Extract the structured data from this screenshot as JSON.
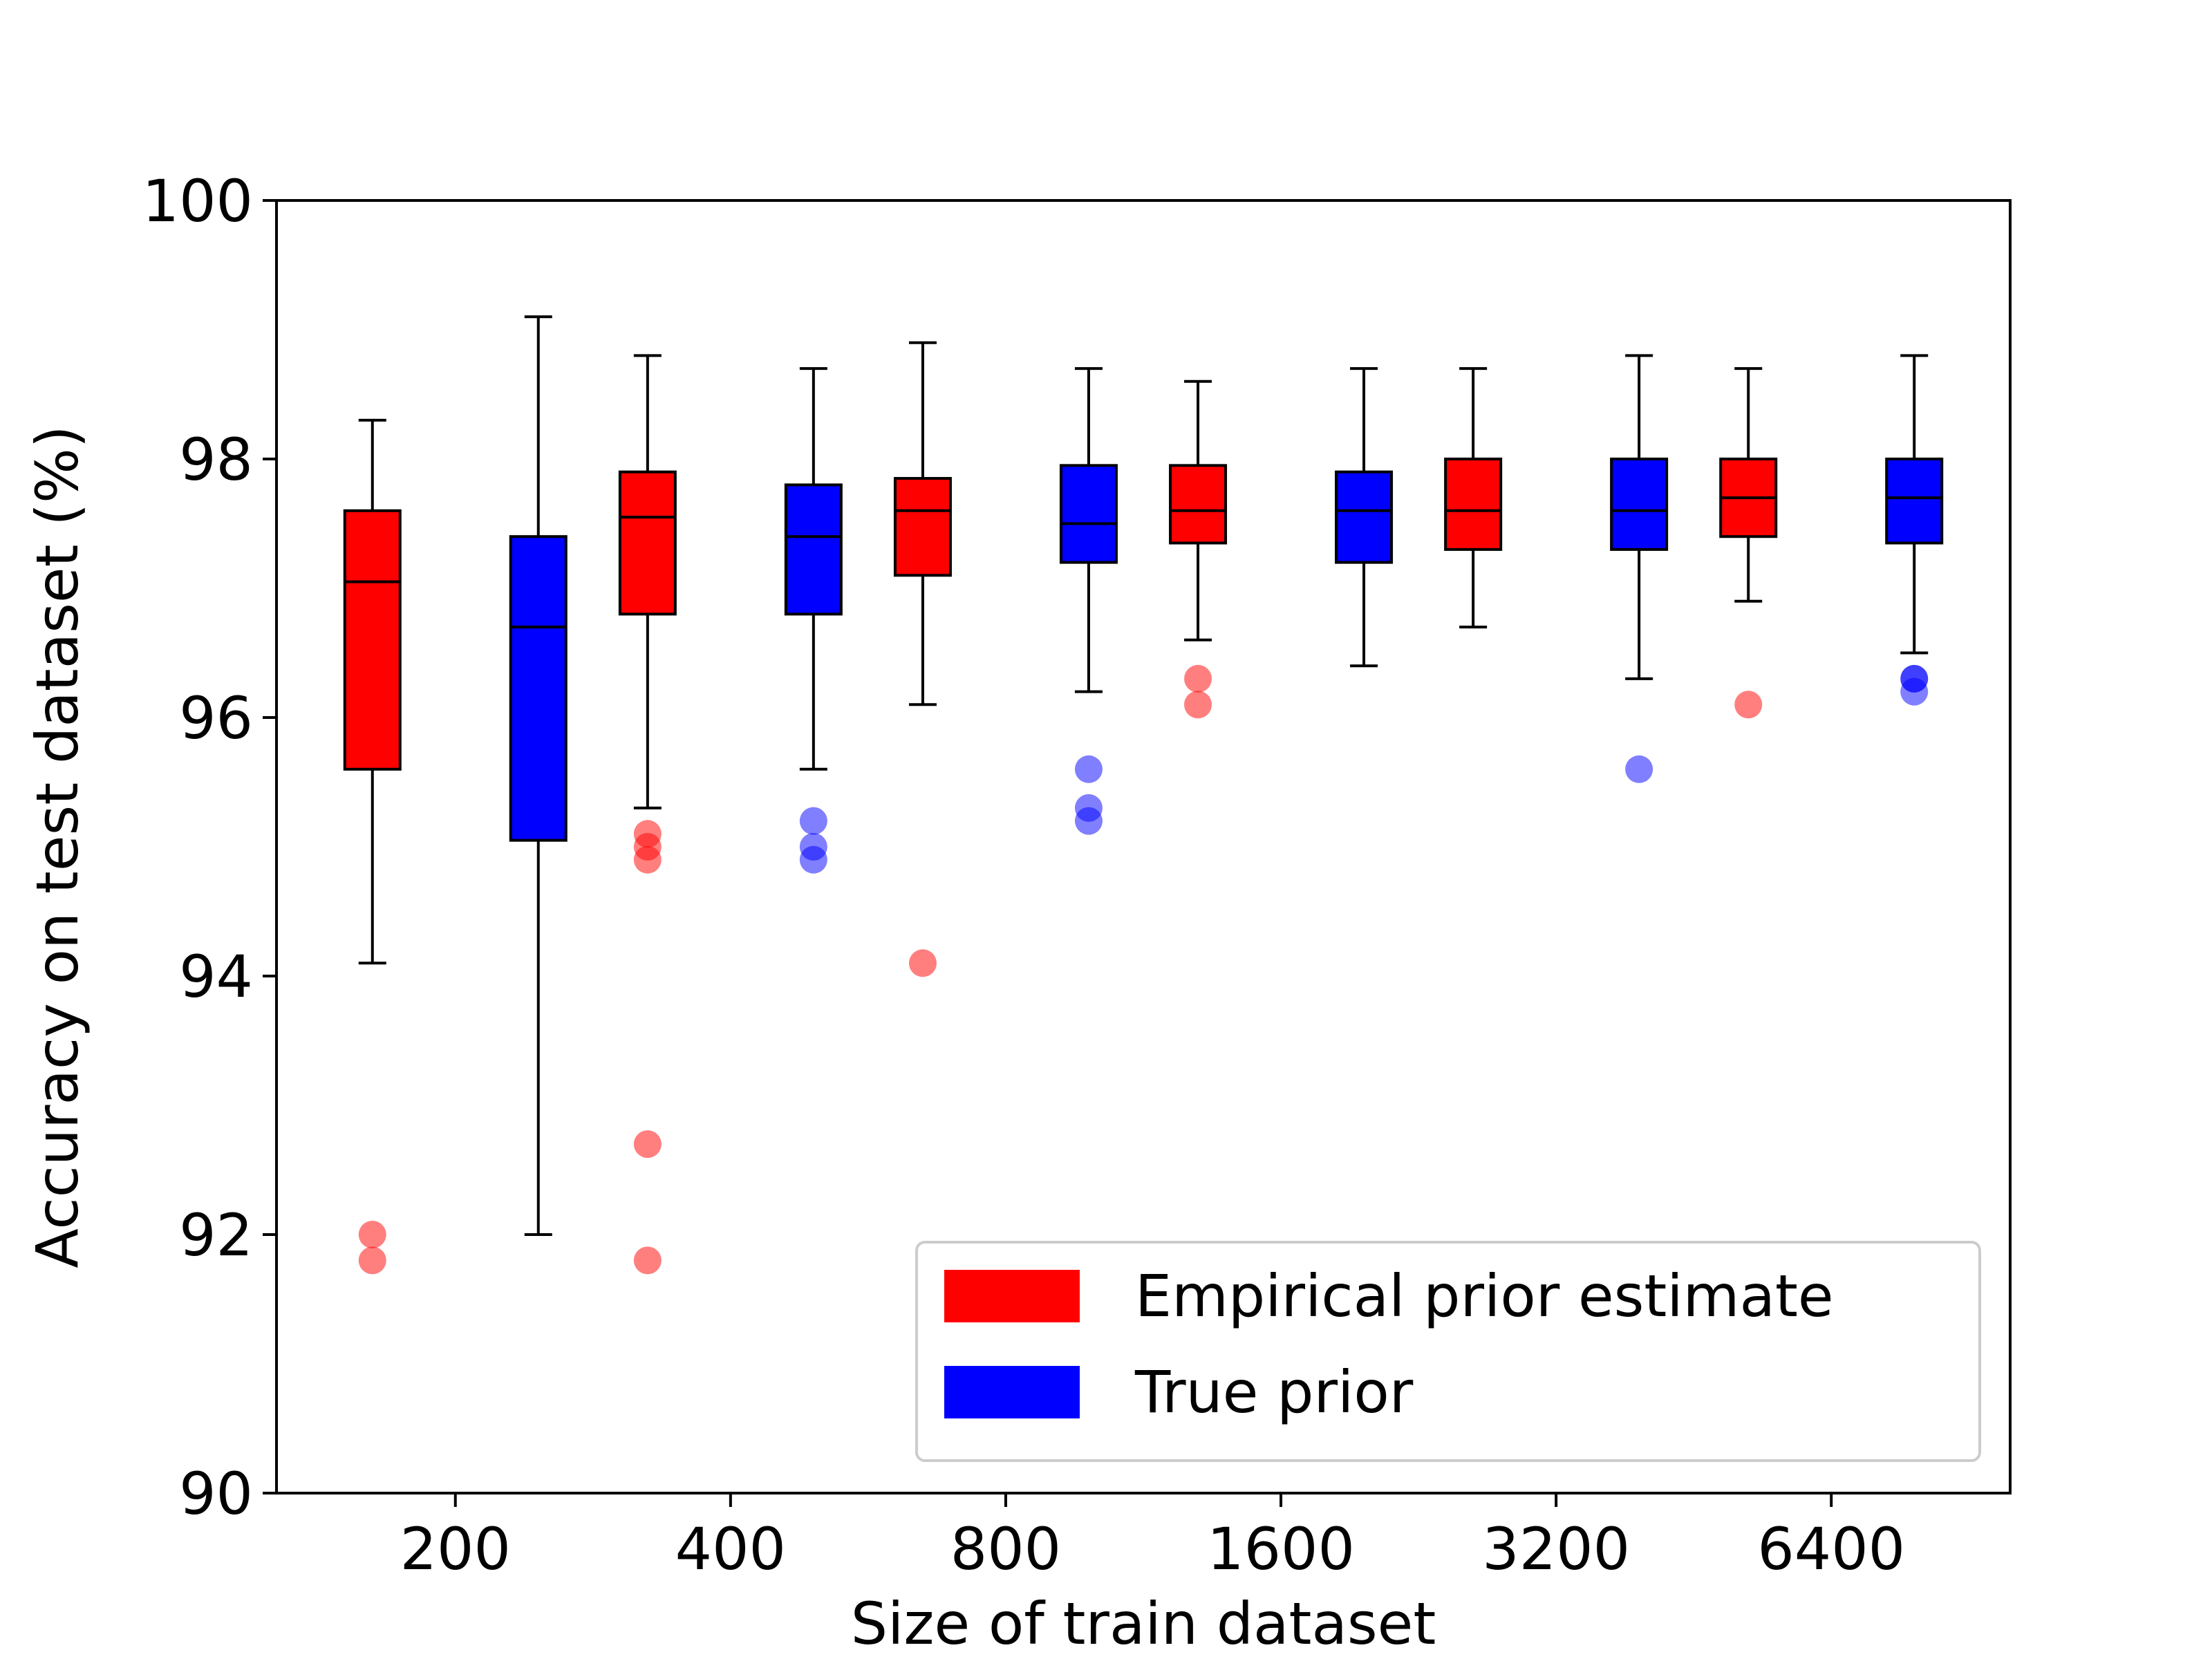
{
  "chart_data": {
    "type": "box",
    "xlabel": "Size of train dataset",
    "ylabel": "Accuracy on test dataset (%)",
    "ylim": [
      90,
      100
    ],
    "yticks": [
      90,
      92,
      94,
      96,
      98,
      100
    ],
    "categories": [
      "200",
      "400",
      "800",
      "1600",
      "3200",
      "6400"
    ],
    "legend_position": "lower-right",
    "grid": false,
    "series": [
      {
        "name": "Empirical prior estimate",
        "color": "#ff0000",
        "boxes": [
          {
            "whisker_low": 94.1,
            "q1": 95.6,
            "median": 97.05,
            "q3": 97.6,
            "whisker_high": 98.3,
            "outliers": [
              92.0,
              91.8
            ]
          },
          {
            "whisker_low": 95.3,
            "q1": 96.8,
            "median": 97.55,
            "q3": 97.9,
            "whisker_high": 98.8,
            "outliers": [
              95.1,
              95.0,
              94.9,
              92.7,
              91.8
            ]
          },
          {
            "whisker_low": 96.1,
            "q1": 97.1,
            "median": 97.6,
            "q3": 97.85,
            "whisker_high": 98.9,
            "outliers": [
              94.1
            ]
          },
          {
            "whisker_low": 96.6,
            "q1": 97.35,
            "median": 97.6,
            "q3": 97.95,
            "whisker_high": 98.6,
            "outliers": [
              96.3,
              96.1
            ]
          },
          {
            "whisker_low": 96.7,
            "q1": 97.3,
            "median": 97.6,
            "q3": 98.0,
            "whisker_high": 98.7,
            "outliers": []
          },
          {
            "whisker_low": 96.9,
            "q1": 97.4,
            "median": 97.7,
            "q3": 98.0,
            "whisker_high": 98.7,
            "outliers": [
              96.1
            ]
          }
        ]
      },
      {
        "name": "True prior",
        "color": "#0000ff",
        "boxes": [
          {
            "whisker_low": 92.0,
            "q1": 95.05,
            "median": 96.7,
            "q3": 97.4,
            "whisker_high": 99.1,
            "outliers": []
          },
          {
            "whisker_low": 95.6,
            "q1": 96.8,
            "median": 97.4,
            "q3": 97.8,
            "whisker_high": 98.7,
            "outliers": [
              95.2,
              95.0,
              94.9
            ]
          },
          {
            "whisker_low": 96.2,
            "q1": 97.2,
            "median": 97.5,
            "q3": 97.95,
            "whisker_high": 98.7,
            "outliers": [
              95.6,
              95.3,
              95.2
            ]
          },
          {
            "whisker_low": 96.4,
            "q1": 97.2,
            "median": 97.6,
            "q3": 97.9,
            "whisker_high": 98.7,
            "outliers": []
          },
          {
            "whisker_low": 96.3,
            "q1": 97.3,
            "median": 97.6,
            "q3": 98.0,
            "whisker_high": 98.8,
            "outliers": [
              95.6
            ]
          },
          {
            "whisker_low": 96.5,
            "q1": 97.35,
            "median": 97.7,
            "q3": 98.0,
            "whisker_high": 98.8,
            "outliers": [
              96.3,
              96.3,
              96.2
            ]
          }
        ]
      }
    ]
  }
}
